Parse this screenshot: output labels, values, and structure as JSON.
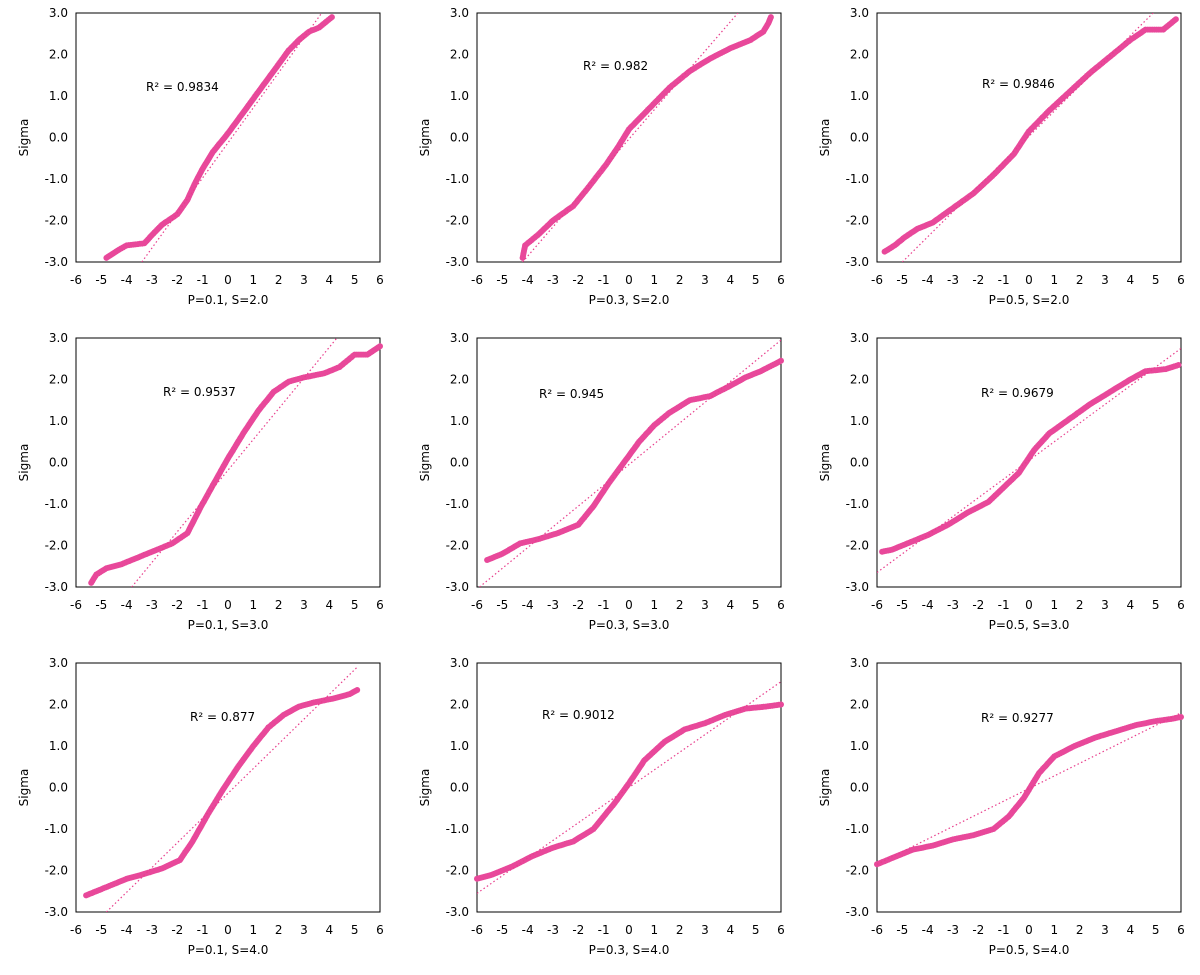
{
  "colors": {
    "points": "#e8489a",
    "trendline": "#e83e8c",
    "frame": "#000000",
    "background": "#ffffff"
  },
  "chart_data": [
    {
      "type": "scatter",
      "ylabel": "Sigma",
      "xlabel": "P=0.1, S=2.0",
      "r2_label": "R² = 0.9834",
      "xlim": [
        -6,
        6
      ],
      "ylim": [
        -3,
        3
      ],
      "x_ticks": [
        "-6",
        "-5",
        "-4",
        "-3",
        "-2",
        "-1",
        "0",
        "1",
        "2",
        "3",
        "4",
        "5",
        "6"
      ],
      "y_ticks": [
        "-3.0",
        "-2.0",
        "-1.0",
        "0.0",
        "1.0",
        "2.0",
        "3.0"
      ],
      "curve": [
        [
          -4.8,
          -2.9
        ],
        [
          -4.3,
          -2.7
        ],
        [
          -4.0,
          -2.6
        ],
        [
          -3.3,
          -2.55
        ],
        [
          -3.0,
          -2.35
        ],
        [
          -2.6,
          -2.1
        ],
        [
          -2.0,
          -1.85
        ],
        [
          -1.6,
          -1.5
        ],
        [
          -1.3,
          -1.1
        ],
        [
          -1.0,
          -0.75
        ],
        [
          -0.6,
          -0.35
        ],
        [
          0,
          0.1
        ],
        [
          0.6,
          0.6
        ],
        [
          1.2,
          1.1
        ],
        [
          1.8,
          1.6
        ],
        [
          2.4,
          2.1
        ],
        [
          2.8,
          2.35
        ],
        [
          3.2,
          2.55
        ],
        [
          3.6,
          2.65
        ],
        [
          3.9,
          2.8
        ],
        [
          4.1,
          2.9
        ]
      ],
      "trendline": [
        [
          -3.4,
          -3
        ],
        [
          3.7,
          3
        ]
      ]
    },
    {
      "type": "scatter",
      "ylabel": "Sigma",
      "xlabel": "P=0.3, S=2.0",
      "r2_label": "R² = 0.982",
      "xlim": [
        -6,
        6
      ],
      "ylim": [
        -3,
        3
      ],
      "x_ticks": [
        "-6",
        "-5",
        "-4",
        "-3",
        "-2",
        "-1",
        "0",
        "1",
        "2",
        "3",
        "4",
        "5",
        "6"
      ],
      "y_ticks": [
        "-3.0",
        "-2.0",
        "-1.0",
        "0.0",
        "1.0",
        "2.0",
        "3.0"
      ],
      "curve": [
        [
          -4.2,
          -2.9
        ],
        [
          -4.1,
          -2.6
        ],
        [
          -3.6,
          -2.35
        ],
        [
          -3.0,
          -2.0
        ],
        [
          -2.2,
          -1.65
        ],
        [
          -1.6,
          -1.2
        ],
        [
          -0.9,
          -0.65
        ],
        [
          -0.4,
          -0.2
        ],
        [
          0,
          0.2
        ],
        [
          0.8,
          0.7
        ],
        [
          1.6,
          1.2
        ],
        [
          2.4,
          1.6
        ],
        [
          3.2,
          1.9
        ],
        [
          4.0,
          2.15
        ],
        [
          4.8,
          2.35
        ],
        [
          5.3,
          2.55
        ],
        [
          5.5,
          2.75
        ],
        [
          5.6,
          2.9
        ]
      ],
      "trendline": [
        [
          -4.2,
          -3
        ],
        [
          4.3,
          3
        ]
      ]
    },
    {
      "type": "scatter",
      "ylabel": "Sigma",
      "xlabel": "P=0.5, S=2.0",
      "r2_label": "R² = 0.9846",
      "xlim": [
        -6,
        6
      ],
      "ylim": [
        -3,
        3
      ],
      "x_ticks": [
        "-6",
        "-5",
        "-4",
        "-3",
        "-2",
        "-1",
        "0",
        "1",
        "2",
        "3",
        "4",
        "5",
        "6"
      ],
      "y_ticks": [
        "-3.0",
        "-2.0",
        "-1.0",
        "0.0",
        "1.0",
        "2.0",
        "3.0"
      ],
      "curve": [
        [
          -5.7,
          -2.75
        ],
        [
          -5.3,
          -2.6
        ],
        [
          -4.9,
          -2.4
        ],
        [
          -4.4,
          -2.2
        ],
        [
          -3.8,
          -2.05
        ],
        [
          -3.0,
          -1.7
        ],
        [
          -2.2,
          -1.35
        ],
        [
          -1.4,
          -0.9
        ],
        [
          -0.6,
          -0.4
        ],
        [
          0,
          0.15
        ],
        [
          0.8,
          0.65
        ],
        [
          1.6,
          1.1
        ],
        [
          2.4,
          1.55
        ],
        [
          3.2,
          1.95
        ],
        [
          4.0,
          2.35
        ],
        [
          4.6,
          2.6
        ],
        [
          5.3,
          2.6
        ],
        [
          5.8,
          2.85
        ]
      ],
      "trendline": [
        [
          -5,
          -3
        ],
        [
          4.9,
          3
        ]
      ]
    },
    {
      "type": "scatter",
      "ylabel": "Sigma",
      "xlabel": "P=0.1, S=3.0",
      "r2_label": "R² = 0.9537",
      "xlim": [
        -6,
        6
      ],
      "ylim": [
        -3,
        3
      ],
      "x_ticks": [
        "-6",
        "-5",
        "-4",
        "-3",
        "-2",
        "-1",
        "0",
        "1",
        "2",
        "3",
        "4",
        "5",
        "6"
      ],
      "y_ticks": [
        "-3.0",
        "-2.0",
        "-1.0",
        "0.0",
        "1.0",
        "2.0",
        "3.0"
      ],
      "curve": [
        [
          -5.4,
          -2.9
        ],
        [
          -5.2,
          -2.7
        ],
        [
          -4.8,
          -2.55
        ],
        [
          -4.2,
          -2.45
        ],
        [
          -3.6,
          -2.3
        ],
        [
          -3.0,
          -2.15
        ],
        [
          -2.2,
          -1.95
        ],
        [
          -1.6,
          -1.7
        ],
        [
          -1.1,
          -1.1
        ],
        [
          -0.6,
          -0.55
        ],
        [
          0,
          0.1
        ],
        [
          0.6,
          0.7
        ],
        [
          1.2,
          1.25
        ],
        [
          1.8,
          1.7
        ],
        [
          2.4,
          1.95
        ],
        [
          3.0,
          2.05
        ],
        [
          3.8,
          2.15
        ],
        [
          4.4,
          2.3
        ],
        [
          5.0,
          2.6
        ],
        [
          5.5,
          2.6
        ],
        [
          6.0,
          2.8
        ]
      ],
      "trendline": [
        [
          -3.8,
          -3
        ],
        [
          4.3,
          3
        ]
      ]
    },
    {
      "type": "scatter",
      "ylabel": "Sigma",
      "xlabel": "P=0.3, S=3.0",
      "r2_label": "R² = 0.945",
      "xlim": [
        -6,
        6
      ],
      "ylim": [
        -3,
        3
      ],
      "x_ticks": [
        "-6",
        "-5",
        "-4",
        "-3",
        "-2",
        "-1",
        "0",
        "1",
        "2",
        "3",
        "4",
        "5",
        "6"
      ],
      "y_ticks": [
        "-3.0",
        "-2.0",
        "-1.0",
        "0.0",
        "1.0",
        "2.0",
        "3.0"
      ],
      "curve": [
        [
          -5.6,
          -2.35
        ],
        [
          -5.0,
          -2.2
        ],
        [
          -4.3,
          -1.95
        ],
        [
          -3.6,
          -1.85
        ],
        [
          -2.8,
          -1.7
        ],
        [
          -2.0,
          -1.5
        ],
        [
          -1.4,
          -1.05
        ],
        [
          -0.8,
          -0.5
        ],
        [
          -0.2,
          0
        ],
        [
          0.4,
          0.5
        ],
        [
          1.0,
          0.9
        ],
        [
          1.6,
          1.2
        ],
        [
          2.4,
          1.5
        ],
        [
          3.2,
          1.6
        ],
        [
          4.0,
          1.85
        ],
        [
          4.6,
          2.05
        ],
        [
          5.2,
          2.2
        ],
        [
          6.0,
          2.45
        ]
      ],
      "trendline": [
        [
          -5.9,
          -3
        ],
        [
          6,
          2.95
        ]
      ]
    },
    {
      "type": "scatter",
      "ylabel": "Sigma",
      "xlabel": "P=0.5, S=3.0",
      "r2_label": "R² = 0.9679",
      "xlim": [
        -6,
        6
      ],
      "ylim": [
        -3,
        3
      ],
      "x_ticks": [
        "-6",
        "-5",
        "-4",
        "-3",
        "-2",
        "-1",
        "0",
        "1",
        "2",
        "3",
        "4",
        "5",
        "6"
      ],
      "y_ticks": [
        "-3.0",
        "-2.0",
        "-1.0",
        "0.0",
        "1.0",
        "2.0",
        "3.0"
      ],
      "curve": [
        [
          -5.8,
          -2.15
        ],
        [
          -5.4,
          -2.1
        ],
        [
          -4.8,
          -1.95
        ],
        [
          -4.0,
          -1.75
        ],
        [
          -3.2,
          -1.5
        ],
        [
          -2.4,
          -1.2
        ],
        [
          -1.6,
          -0.95
        ],
        [
          -1.0,
          -0.6
        ],
        [
          -0.4,
          -0.25
        ],
        [
          0.2,
          0.3
        ],
        [
          0.8,
          0.7
        ],
        [
          1.6,
          1.05
        ],
        [
          2.4,
          1.4
        ],
        [
          3.2,
          1.7
        ],
        [
          4.0,
          2.0
        ],
        [
          4.6,
          2.2
        ],
        [
          5.4,
          2.25
        ],
        [
          5.9,
          2.35
        ]
      ],
      "trendline": [
        [
          -6,
          -2.65
        ],
        [
          6,
          2.75
        ]
      ]
    },
    {
      "type": "scatter",
      "ylabel": "Sigma",
      "xlabel": "P=0.1, S=4.0",
      "r2_label": "R² = 0.877",
      "xlim": [
        -6,
        6
      ],
      "ylim": [
        -3,
        3
      ],
      "x_ticks": [
        "-6",
        "-5",
        "-4",
        "-3",
        "-2",
        "-1",
        "0",
        "1",
        "2",
        "3",
        "4",
        "5",
        "6"
      ],
      "y_ticks": [
        "-3.0",
        "-2.0",
        "-1.0",
        "0.0",
        "1.0",
        "2.0",
        "3.0"
      ],
      "curve": [
        [
          -5.6,
          -2.6
        ],
        [
          -5.0,
          -2.45
        ],
        [
          -4.6,
          -2.35
        ],
        [
          -4.0,
          -2.2
        ],
        [
          -3.4,
          -2.1
        ],
        [
          -2.6,
          -1.95
        ],
        [
          -1.9,
          -1.75
        ],
        [
          -1.4,
          -1.3
        ],
        [
          -0.8,
          -0.65
        ],
        [
          -0.2,
          -0.05
        ],
        [
          0.4,
          0.5
        ],
        [
          1.0,
          1.0
        ],
        [
          1.6,
          1.45
        ],
        [
          2.2,
          1.75
        ],
        [
          2.8,
          1.95
        ],
        [
          3.4,
          2.05
        ],
        [
          4.2,
          2.15
        ],
        [
          4.8,
          2.25
        ],
        [
          5.1,
          2.35
        ]
      ],
      "trendline": [
        [
          -4.8,
          -3
        ],
        [
          5.1,
          2.9
        ]
      ]
    },
    {
      "type": "scatter",
      "ylabel": "Sigma",
      "xlabel": "P=0.3, S=4.0",
      "r2_label": "R² = 0.9012",
      "xlim": [
        -6,
        6
      ],
      "ylim": [
        -3,
        3
      ],
      "x_ticks": [
        "-6",
        "-5",
        "-4",
        "-3",
        "-2",
        "-1",
        "0",
        "1",
        "2",
        "3",
        "4",
        "5",
        "6"
      ],
      "y_ticks": [
        "-3.0",
        "-2.0",
        "-1.0",
        "0.0",
        "1.0",
        "2.0",
        "3.0"
      ],
      "curve": [
        [
          -6.0,
          -2.2
        ],
        [
          -5.4,
          -2.1
        ],
        [
          -4.6,
          -1.9
        ],
        [
          -3.8,
          -1.65
        ],
        [
          -3.0,
          -1.45
        ],
        [
          -2.2,
          -1.3
        ],
        [
          -1.4,
          -1.0
        ],
        [
          -0.6,
          -0.4
        ],
        [
          0,
          0.1
        ],
        [
          0.6,
          0.65
        ],
        [
          1.4,
          1.1
        ],
        [
          2.2,
          1.4
        ],
        [
          3.0,
          1.55
        ],
        [
          3.8,
          1.75
        ],
        [
          4.6,
          1.9
        ],
        [
          5.4,
          1.95
        ],
        [
          6.0,
          2.0
        ]
      ],
      "trendline": [
        [
          -6,
          -2.55
        ],
        [
          6,
          2.55
        ]
      ]
    },
    {
      "type": "scatter",
      "ylabel": "Sigma",
      "xlabel": "P=0.5, S=4.0",
      "r2_label": "R² = 0.9277",
      "xlim": [
        -6,
        6
      ],
      "ylim": [
        -3,
        3
      ],
      "x_ticks": [
        "-6",
        "-5",
        "-4",
        "-3",
        "-2",
        "-1",
        "0",
        "1",
        "2",
        "3",
        "4",
        "5",
        "6"
      ],
      "y_ticks": [
        "-3.0",
        "-2.0",
        "-1.0",
        "0.0",
        "1.0",
        "2.0",
        "3.0"
      ],
      "curve": [
        [
          -6.0,
          -1.85
        ],
        [
          -5.4,
          -1.7
        ],
        [
          -4.6,
          -1.5
        ],
        [
          -3.8,
          -1.4
        ],
        [
          -3.0,
          -1.25
        ],
        [
          -2.2,
          -1.15
        ],
        [
          -1.4,
          -1.0
        ],
        [
          -0.8,
          -0.7
        ],
        [
          -0.2,
          -0.25
        ],
        [
          0.4,
          0.35
        ],
        [
          1.0,
          0.75
        ],
        [
          1.8,
          1.0
        ],
        [
          2.6,
          1.2
        ],
        [
          3.4,
          1.35
        ],
        [
          4.2,
          1.5
        ],
        [
          5.0,
          1.6
        ],
        [
          5.6,
          1.65
        ],
        [
          6.0,
          1.7
        ]
      ],
      "trendline": [
        [
          -6,
          -1.85
        ],
        [
          6,
          1.8
        ]
      ]
    }
  ]
}
